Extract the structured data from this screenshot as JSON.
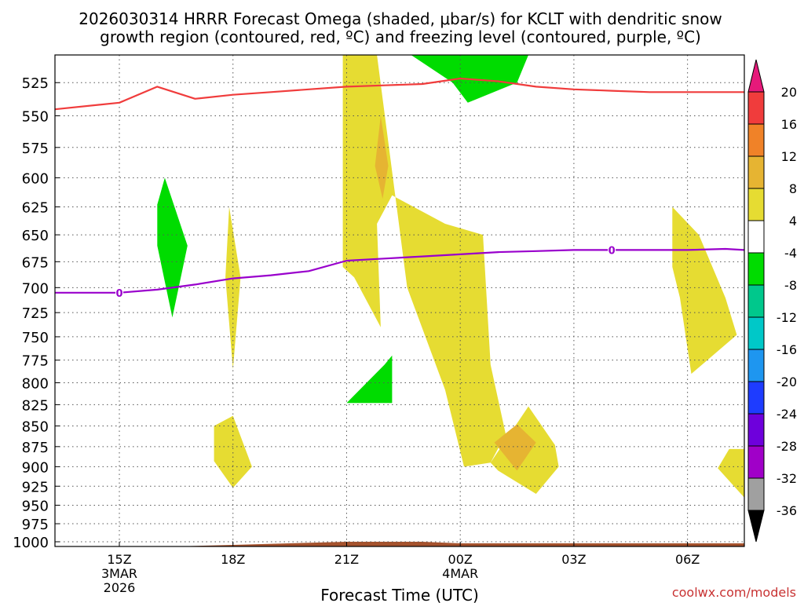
{
  "chart_data": {
    "type": "time-height contour",
    "title_line1": "2026030314 HRRR Forecast Omega (shaded, μbar/s) for KCLT with dendritic snow",
    "title_line2": "growth region (contoured, red, ºC) and freezing level (contoured, purple, ºC)",
    "xlabel": "Forecast Time (UTC)",
    "credit": "coolwx.com/models",
    "x_range_hours": [
      -1.7,
      16.5
    ],
    "y_range_mb": [
      1000,
      505
    ],
    "x_ticks": [
      {
        "hour": 0,
        "label": "15Z",
        "sub1": "3MAR",
        "sub2": "2026"
      },
      {
        "hour": 3,
        "label": "18Z",
        "sub1": "",
        "sub2": ""
      },
      {
        "hour": 6,
        "label": "21Z",
        "sub1": "",
        "sub2": ""
      },
      {
        "hour": 9,
        "label": "00Z",
        "sub1": "4MAR",
        "sub2": ""
      },
      {
        "hour": 12,
        "label": "03Z",
        "sub1": "",
        "sub2": ""
      },
      {
        "hour": 15,
        "label": "06Z",
        "sub1": "",
        "sub2": ""
      }
    ],
    "y_ticks": [
      "525",
      "550",
      "575",
      "600",
      "625",
      "650",
      "675",
      "700",
      "725",
      "750",
      "775",
      "800",
      "825",
      "850",
      "875",
      "900",
      "925",
      "950",
      "975",
      "1000"
    ],
    "colorbar": {
      "labels": [
        "20",
        "16",
        "12",
        "8",
        "4",
        "-4",
        "-8",
        "-12",
        "-16",
        "-20",
        "-24",
        "-28",
        "-32",
        "-36"
      ],
      "colors": [
        "#f03c3c",
        "#f08228",
        "#e6b432",
        "#e6dc32",
        "#ffffff",
        "#00dc00",
        "#00c88c",
        "#00c8c8",
        "#1e96f0",
        "#1e3cff",
        "#6e00dc",
        "#a000c8",
        "#a0a0a0"
      ],
      "top_arrow": "#e6197a",
      "bottom_arrow": "#000000"
    },
    "omega_regions": [
      {
        "level": "4 to 8",
        "color": "#e6dc32",
        "points": [
          [
            5.9,
            505
          ],
          [
            6.8,
            505
          ],
          [
            7.6,
            700
          ],
          [
            8.6,
            808
          ],
          [
            9.1,
            900
          ],
          [
            9.8,
            895
          ],
          [
            10.2,
            860
          ],
          [
            9.8,
            780
          ],
          [
            9.6,
            650
          ],
          [
            8.6,
            640
          ],
          [
            7.2,
            615
          ],
          [
            6.8,
            640
          ],
          [
            6.9,
            740
          ],
          [
            6.2,
            690
          ],
          [
            5.9,
            680
          ]
        ]
      },
      {
        "level": "4 to 8",
        "color": "#e6dc32",
        "points": [
          [
            9.8,
            895
          ],
          [
            10.8,
            827
          ],
          [
            11.5,
            873
          ],
          [
            11.6,
            900
          ],
          [
            11,
            935
          ],
          [
            10,
            905
          ]
        ]
      },
      {
        "level": "4 to 8",
        "color": "#e6dc32",
        "points": [
          [
            2.9,
            625
          ],
          [
            3.2,
            690
          ],
          [
            3,
            785
          ],
          [
            2.8,
            690
          ]
        ]
      },
      {
        "level": "4 to 8",
        "color": "#e6dc32",
        "points": [
          [
            2.5,
            850
          ],
          [
            3,
            838
          ],
          [
            3.5,
            900
          ],
          [
            3,
            927
          ],
          [
            2.5,
            893
          ]
        ]
      },
      {
        "level": "4 to 8",
        "color": "#e6dc32",
        "points": [
          [
            14.6,
            625
          ],
          [
            15.3,
            650
          ],
          [
            16,
            710
          ],
          [
            16.3,
            748
          ],
          [
            15.1,
            790
          ],
          [
            14.8,
            710
          ],
          [
            14.6,
            680
          ]
        ]
      },
      {
        "level": "4 to 8",
        "color": "#e6dc32",
        "points": [
          [
            16.1,
            878
          ],
          [
            16.5,
            878
          ],
          [
            16.5,
            940
          ],
          [
            15.8,
            902
          ]
        ]
      },
      {
        "level": "8 to 12",
        "color": "#e6b432",
        "points": [
          [
            6.9,
            550
          ],
          [
            7.1,
            590
          ],
          [
            6.95,
            618
          ],
          [
            6.75,
            590
          ]
        ]
      },
      {
        "level": "8 to 12",
        "color": "#e6b432",
        "points": [
          [
            10.5,
            848
          ],
          [
            11.0,
            870
          ],
          [
            10.5,
            905
          ],
          [
            9.9,
            870
          ]
        ]
      },
      {
        "level": "-4 to -8",
        "color": "#00dc00",
        "points": [
          [
            1.0,
            623
          ],
          [
            1.2,
            600
          ],
          [
            1.8,
            660
          ],
          [
            1.4,
            730
          ],
          [
            1.0,
            660
          ]
        ]
      },
      {
        "level": "-4 to -8",
        "color": "#00dc00",
        "points": [
          [
            7.0,
            780
          ],
          [
            7.2,
            770
          ],
          [
            7.2,
            823
          ],
          [
            6.0,
            823
          ]
        ]
      },
      {
        "level": "-4 to -8",
        "color": "#00dc00",
        "points": [
          [
            7.7,
            505
          ],
          [
            10.8,
            505
          ],
          [
            10.5,
            525
          ],
          [
            9.2,
            540
          ],
          [
            8.8,
            525
          ]
        ]
      }
    ],
    "dgz_line": {
      "name": "dendritic snow growth region",
      "color": "#f03c3c",
      "hours": [
        -1.7,
        0,
        1,
        2,
        3,
        4,
        5,
        6,
        7,
        8,
        9,
        10,
        11,
        12,
        13,
        14,
        15,
        16,
        16.5
      ],
      "mb": [
        545,
        540,
        528,
        537,
        534,
        532,
        530,
        528,
        527,
        526,
        522,
        524,
        528,
        530,
        531,
        532,
        532,
        532,
        532
      ]
    },
    "freezing_line": {
      "name": "freezing level",
      "color": "#9900cc",
      "hours": [
        -1.7,
        0,
        1,
        2,
        3,
        4,
        5,
        6,
        7,
        8,
        9,
        10,
        11,
        12,
        13,
        14,
        15,
        16,
        16.5
      ],
      "mb": [
        705,
        705,
        702,
        697,
        691,
        688,
        684,
        674,
        672,
        670,
        668,
        666,
        665,
        664,
        664,
        664,
        664,
        663,
        664
      ],
      "label": "0",
      "label_hours": [
        0,
        13.0
      ]
    },
    "terrain": {
      "color": "#a5522d",
      "hours": [
        -1.7,
        0,
        3,
        6,
        8,
        9,
        12,
        16.5
      ],
      "mb": [
        1003,
        1004,
        1002,
        1000,
        1000,
        1001,
        1001,
        1001
      ]
    }
  }
}
